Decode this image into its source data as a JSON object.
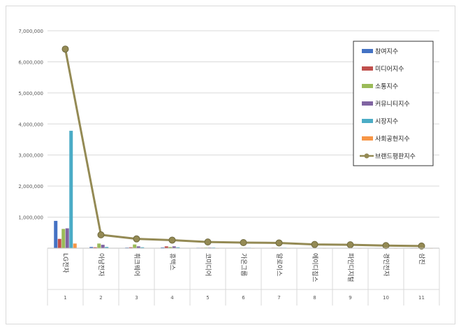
{
  "chart_data": {
    "type": "bar",
    "title": "",
    "xlabel": "",
    "ylabel": "",
    "ylim": [
      0,
      7000000
    ],
    "y_ticks": [
      "7,000,000",
      "6,000,000",
      "5,000,000",
      "4,000,000",
      "3,000,000",
      "2,000,000",
      "1,000,000",
      ""
    ],
    "grid": true,
    "legend_position": "top-right",
    "categories": [
      "LG전자",
      "아남전자",
      "휘크웨어",
      "휴맥스",
      "코미디어",
      "가온그룹",
      "알로이스",
      "에이디칩스",
      "파인디지털",
      "경인전자",
      "삼진"
    ],
    "category_numbers": [
      "1",
      "2",
      "3",
      "4",
      "5",
      "6",
      "7",
      "8",
      "9",
      "10",
      "11"
    ],
    "series": [
      {
        "name": "참여지수",
        "color": "#4472c4",
        "values": [
          880000,
          40000,
          20000,
          25000,
          15000,
          10000,
          10000,
          8000,
          8000,
          6000,
          5000
        ]
      },
      {
        "name": "미디어지수",
        "color": "#c0504d",
        "values": [
          300000,
          30000,
          30000,
          60000,
          15000,
          10000,
          15000,
          8000,
          8000,
          6000,
          5000
        ]
      },
      {
        "name": "소통지수",
        "color": "#9bbb59",
        "values": [
          620000,
          150000,
          120000,
          40000,
          20000,
          15000,
          15000,
          10000,
          10000,
          8000,
          6000
        ]
      },
      {
        "name": "커뮤니티지수",
        "color": "#8064a2",
        "values": [
          640000,
          110000,
          60000,
          60000,
          20000,
          15000,
          15000,
          10000,
          10000,
          8000,
          6000
        ]
      },
      {
        "name": "시장지수",
        "color": "#4bacc6",
        "values": [
          3780000,
          40000,
          30000,
          30000,
          20000,
          15000,
          15000,
          10000,
          10000,
          8000,
          6000
        ]
      },
      {
        "name": "사회공헌지수",
        "color": "#f79646",
        "values": [
          150000,
          10000,
          10000,
          10000,
          5000,
          5000,
          5000,
          5000,
          5000,
          5000,
          5000
        ]
      },
      {
        "name": "브랜드평판지수",
        "color": "#948a54",
        "type": "line",
        "values": [
          6410000,
          430000,
          300000,
          260000,
          200000,
          180000,
          170000,
          120000,
          110000,
          85000,
          70000
        ]
      }
    ]
  }
}
